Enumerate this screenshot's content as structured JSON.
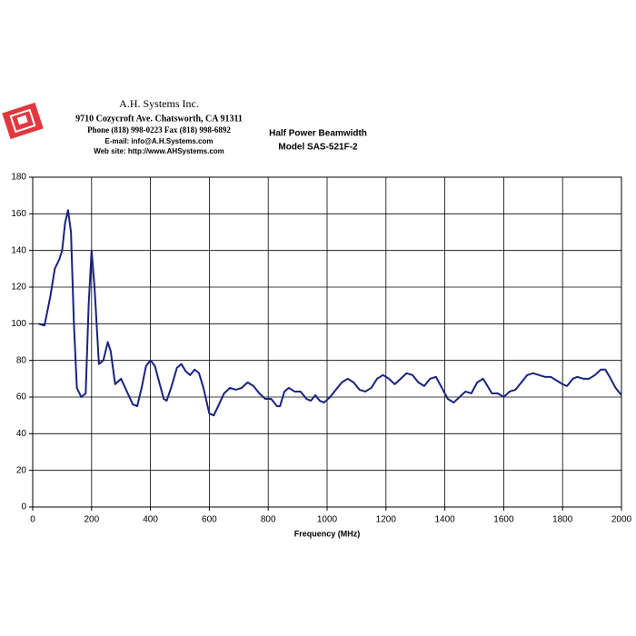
{
  "chart_data": {
    "type": "line",
    "title": "Half Power Beamwidth",
    "subtitle": "Model SAS-521F-2",
    "annotations": [
      "A.H. Systems Inc.",
      "9710 Cozycroft Ave. Chatsworth, CA 91311",
      "Phone (818) 998-0223 Fax (818) 998-6892",
      "E-mail:  info@A.H.Systems.com",
      "Web site:  http://www.AHSystems.com"
    ],
    "xlabel": "Frequency (MHz)",
    "color": "#1a237e",
    "grid": true,
    "xlim": [
      0,
      2000
    ],
    "xticks": [
      0,
      200,
      400,
      600,
      800,
      1000,
      1200,
      1400,
      1600,
      1800,
      2000
    ],
    "ylim": [
      0,
      180
    ],
    "yticks": [
      0,
      20,
      40,
      60,
      80,
      100,
      120,
      140,
      160,
      180
    ],
    "x": [
      20,
      40,
      60,
      75,
      90,
      100,
      110,
      120,
      130,
      140,
      150,
      165,
      180,
      190,
      200,
      210,
      225,
      240,
      255,
      265,
      280,
      300,
      320,
      340,
      355,
      370,
      385,
      400,
      415,
      430,
      445,
      455,
      470,
      490,
      505,
      520,
      535,
      550,
      565,
      580,
      600,
      615,
      630,
      650,
      670,
      690,
      710,
      730,
      750,
      770,
      790,
      810,
      830,
      840,
      855,
      870,
      890,
      910,
      930,
      945,
      960,
      975,
      990,
      1010,
      1030,
      1050,
      1070,
      1090,
      1110,
      1130,
      1150,
      1170,
      1190,
      1210,
      1230,
      1250,
      1270,
      1290,
      1310,
      1330,
      1350,
      1370,
      1390,
      1410,
      1430,
      1450,
      1470,
      1490,
      1510,
      1530,
      1545,
      1560,
      1580,
      1600,
      1620,
      1640,
      1660,
      1680,
      1700,
      1720,
      1740,
      1760,
      1780,
      1800,
      1815,
      1835,
      1850,
      1870,
      1890,
      1910,
      1930,
      1945,
      1960,
      1980,
      2000
    ],
    "values": [
      100,
      99,
      115,
      130,
      135,
      140,
      155,
      162,
      150,
      100,
      65,
      60,
      62,
      110,
      140,
      120,
      78,
      80,
      90,
      85,
      67,
      70,
      63,
      56,
      55,
      65,
      77,
      80,
      77,
      68,
      59,
      58,
      65,
      76,
      78,
      74,
      72,
      75,
      73,
      65,
      51,
      50,
      55,
      62,
      65,
      64,
      65,
      68,
      66,
      62,
      59,
      59,
      55,
      55,
      63,
      65,
      63,
      63,
      59,
      58,
      61,
      58,
      57,
      60,
      64,
      68,
      70,
      68,
      64,
      63,
      65,
      70,
      72,
      70,
      67,
      70,
      73,
      72,
      68,
      66,
      70,
      71,
      65,
      59,
      57,
      60,
      63,
      62,
      68,
      70,
      66,
      62,
      62,
      60,
      63,
      64,
      68,
      72,
      73,
      72,
      71,
      71,
      69,
      67,
      66,
      70,
      71,
      70,
      70,
      72,
      75,
      75,
      71,
      65,
      61
    ]
  }
}
